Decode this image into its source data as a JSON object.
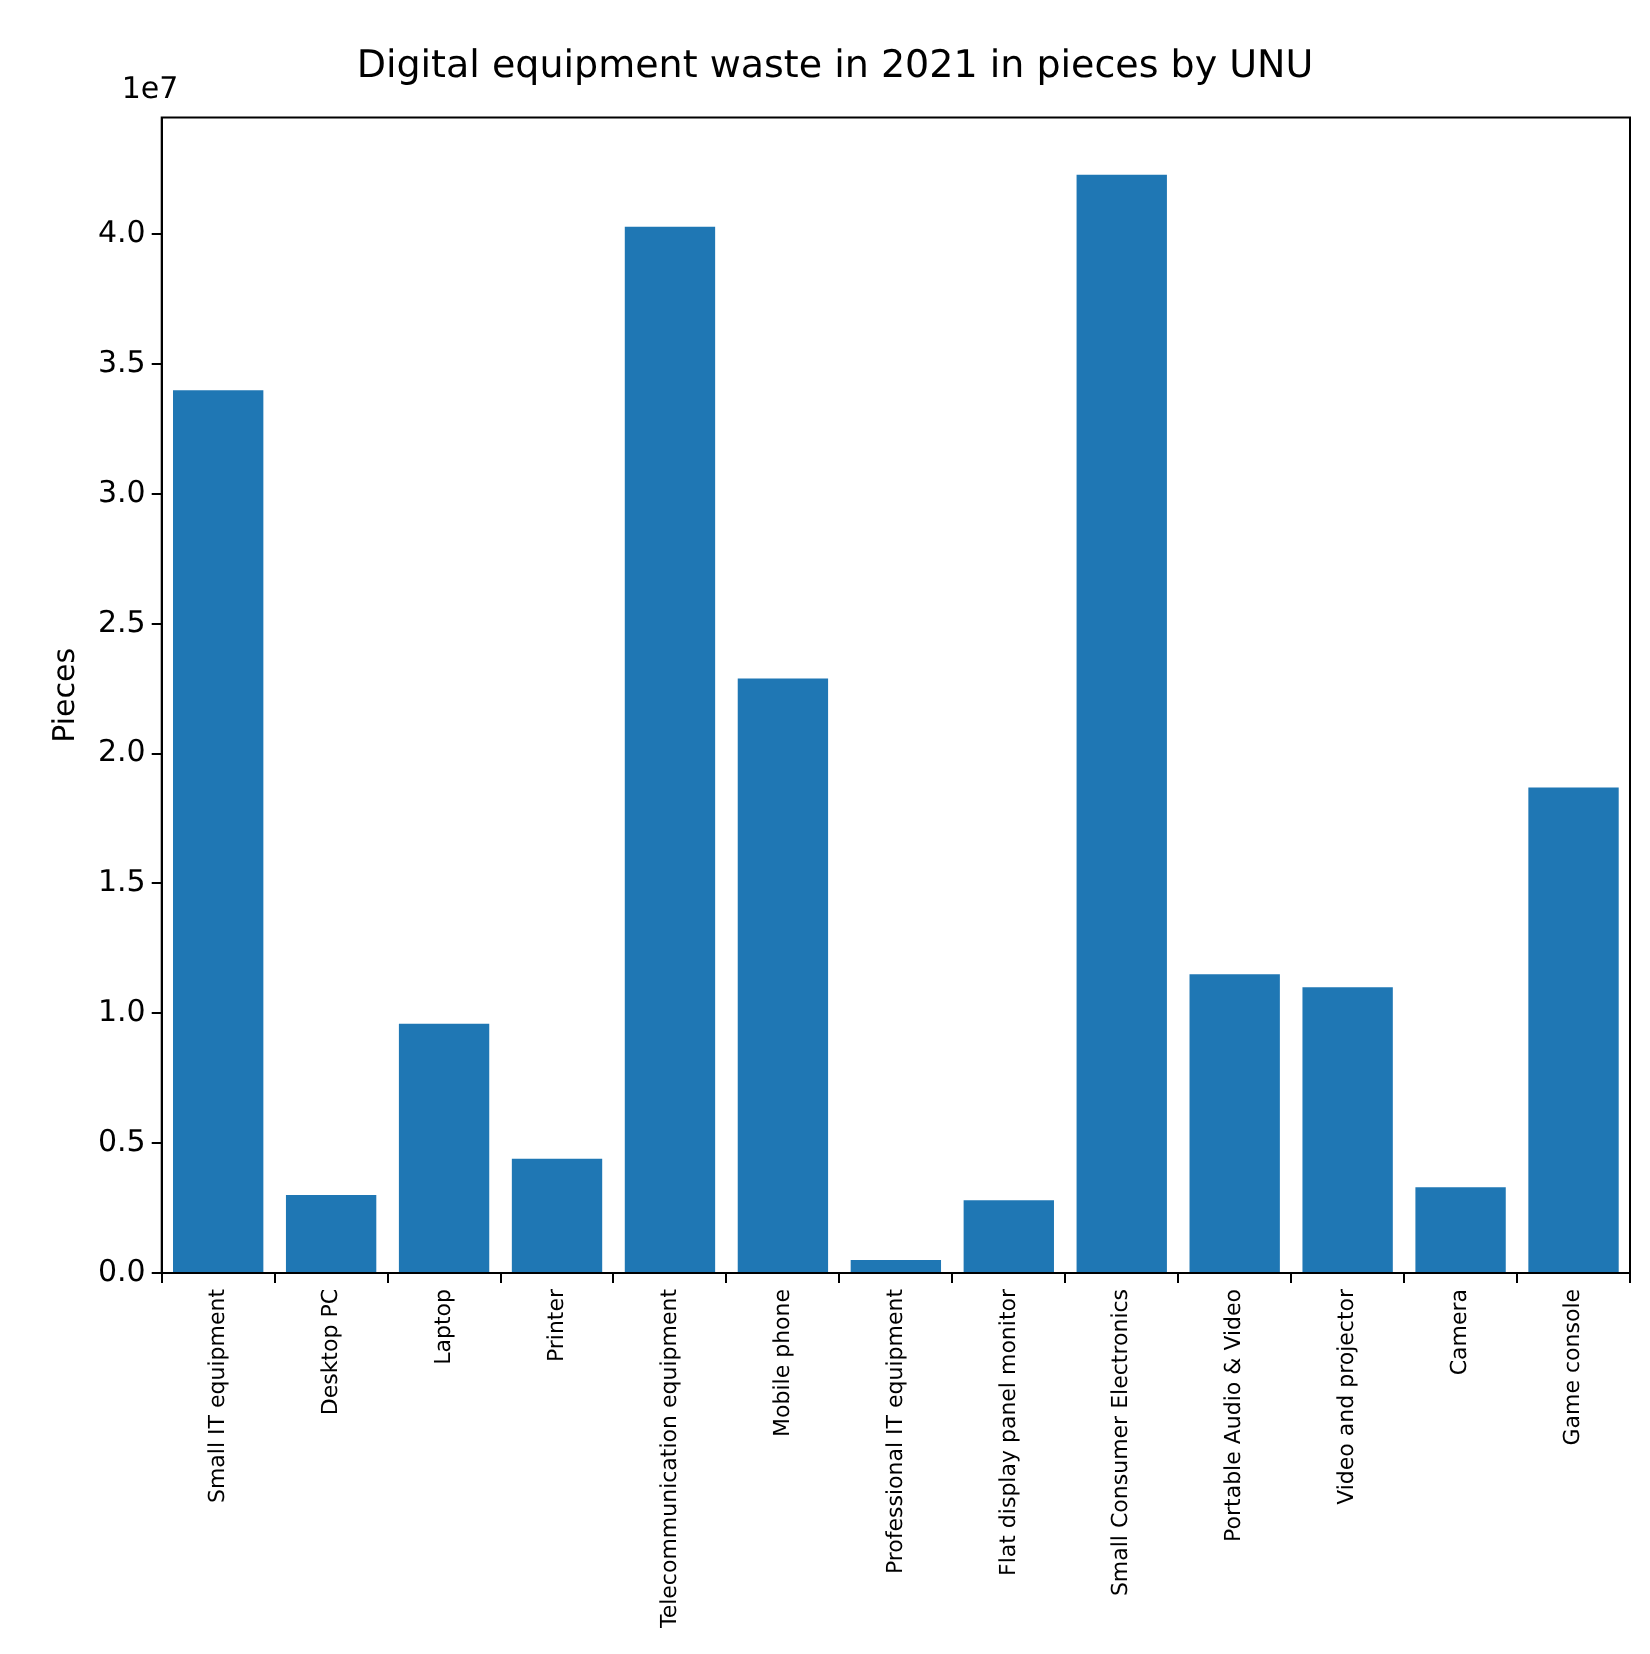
{
  "chart_data": {
    "type": "bar",
    "title": "Digital equipment waste in 2021 in pieces by UNU",
    "ylabel": "Pieces",
    "categories": [
      "Small IT equipment",
      "Desktop PC",
      "Laptop",
      "Printer",
      "Telecommunication equipment",
      "Mobile phone",
      "Professional IT equipment",
      "Flat display panel monitor",
      "Small Consumer Electronics",
      "Portable Audio & Video",
      "Video and projector",
      "Camera",
      "Game console"
    ],
    "values": [
      3.4,
      0.3,
      0.96,
      0.44,
      4.03,
      2.29,
      0.05,
      0.28,
      4.23,
      1.15,
      1.1,
      0.33,
      1.87
    ],
    "color": "#1f77b4",
    "ylim": [
      0,
      4.45
    ],
    "yticks": [
      {
        "value": 0,
        "label": "0.0"
      },
      0.5,
      {
        "value": 1,
        "label": "1.0"
      },
      1.5,
      {
        "value": 2,
        "label": "2.0"
      },
      2.5,
      {
        "value": 3,
        "label": "3.0"
      },
      3.5,
      {
        "value": 4,
        "label": "4.0"
      }
    ],
    "annotations": [
      "1e7"
    ],
    "grid": false,
    "legend": false
  }
}
